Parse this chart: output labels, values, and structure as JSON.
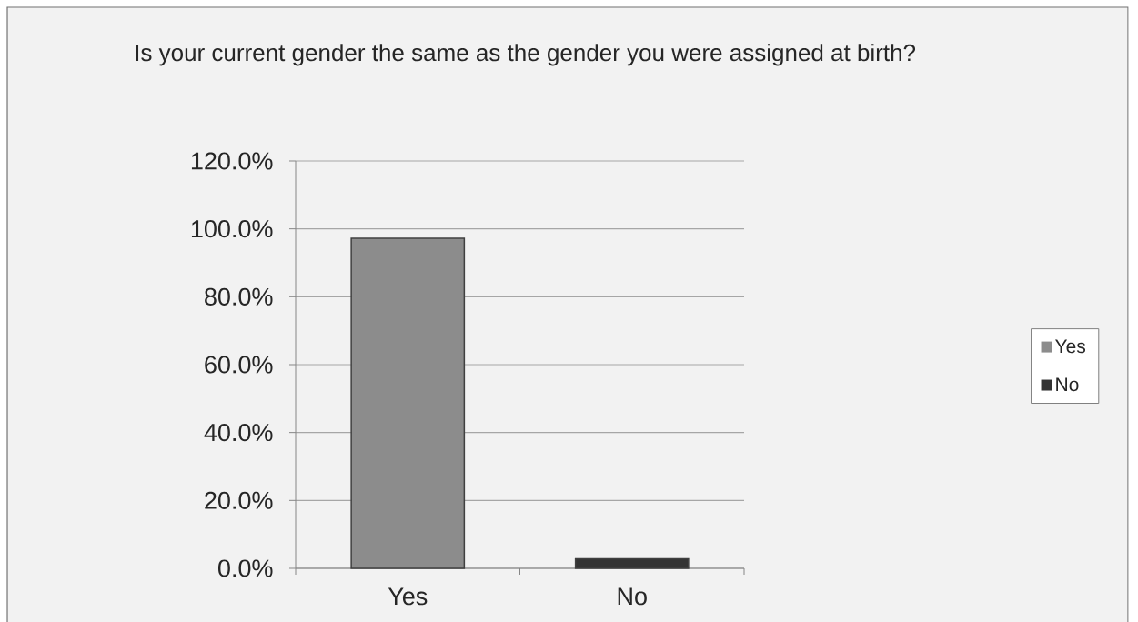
{
  "chart_data": {
    "type": "bar",
    "title": "Is your current gender the same as the gender you were assigned at birth?",
    "categories": [
      "Yes",
      "No"
    ],
    "series": [
      {
        "name": "Yes",
        "color": "#8c8c8c",
        "values": [
          97.2,
          null
        ]
      },
      {
        "name": "No",
        "color": "#333333",
        "values": [
          null,
          2.8
        ]
      }
    ],
    "ylim": [
      0,
      120
    ],
    "yticks": [
      {
        "value": 0,
        "label": "0.0%"
      },
      {
        "value": 20,
        "label": "20.0%"
      },
      {
        "value": 40,
        "label": "40.0%"
      },
      {
        "value": 60,
        "label": "60.0%"
      },
      {
        "value": 80,
        "label": "80.0%"
      },
      {
        "value": 100,
        "label": "100.0%"
      },
      {
        "value": 120,
        "label": "120.0%"
      }
    ],
    "grid": "y",
    "legend": "right"
  }
}
